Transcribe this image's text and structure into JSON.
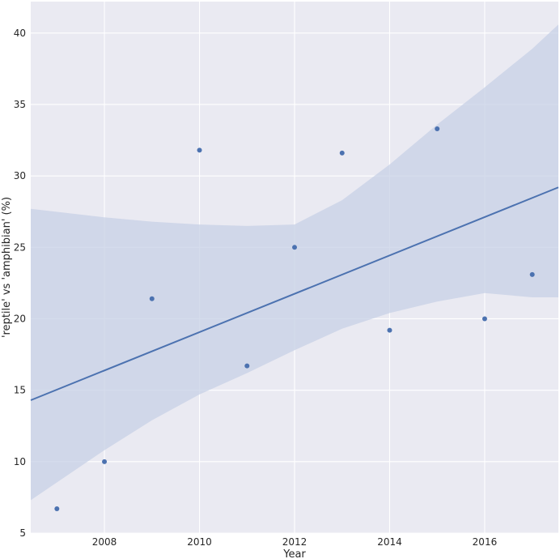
{
  "chart_data": {
    "type": "scatter",
    "title": "",
    "xlabel": "Year",
    "ylabel": "'reptile' vs 'amphibian' (%)",
    "xlim": [
      2006.45,
      2017.55
    ],
    "ylim": [
      5,
      42.2
    ],
    "x_ticks": [
      2008,
      2010,
      2012,
      2014,
      2016
    ],
    "y_ticks": [
      5,
      10,
      15,
      20,
      25,
      30,
      35,
      40
    ],
    "grid": true,
    "points": {
      "x": [
        2007,
        2008,
        2009,
        2010,
        2011,
        2012,
        2013,
        2014,
        2015,
        2016,
        2017
      ],
      "y": [
        6.7,
        10.0,
        21.4,
        31.8,
        16.7,
        25.0,
        31.6,
        19.2,
        33.3,
        20.0,
        23.1
      ]
    },
    "regression": {
      "x": [
        2006.45,
        2017.55
      ],
      "y": [
        14.3,
        29.2
      ]
    },
    "confidence_band": {
      "x": [
        2006.45,
        2008,
        2009,
        2010,
        2011,
        2012,
        2013,
        2014,
        2015,
        2016,
        2017,
        2017.55
      ],
      "lower": [
        7.3,
        10.8,
        12.9,
        14.7,
        16.2,
        17.8,
        19.3,
        20.4,
        21.2,
        21.8,
        21.5,
        21.5
      ],
      "upper": [
        27.7,
        27.1,
        26.8,
        26.6,
        26.5,
        26.6,
        28.3,
        30.8,
        33.6,
        36.2,
        38.9,
        40.6
      ]
    },
    "colors": {
      "background": "#eaeaf2",
      "grid": "#ffffff",
      "line": "#4c72b0",
      "points": "#4c72b0",
      "band": "#c7d0e5"
    }
  }
}
